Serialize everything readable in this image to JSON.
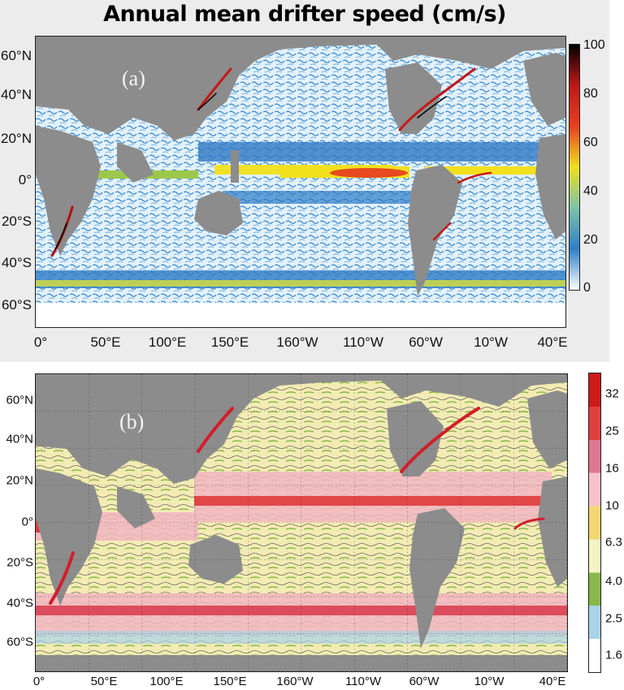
{
  "panel_a": {
    "title": "Annual mean drifter speed (cm/s)",
    "panel_label": "(a)",
    "y_ticks": [
      "60°N",
      "40°N",
      "20°N",
      "0°",
      "20°S",
      "40°S",
      "60°S"
    ],
    "x_ticks": [
      "0°",
      "50°E",
      "100°E",
      "150°E",
      "160°W",
      "110°W",
      "60°W",
      "10°W",
      "40°E"
    ],
    "colorbar_ticks": [
      "100",
      "80",
      "60",
      "40",
      "20",
      "0"
    ]
  },
  "panel_b": {
    "panel_label": "(b)",
    "y_ticks": [
      "60°N",
      "40°N",
      "20°N",
      "0°",
      "20°S",
      "40°S",
      "60°S"
    ],
    "x_ticks": [
      "0°",
      "50°E",
      "100°E",
      "150°E",
      "160°W",
      "110°W",
      "60°W",
      "10°W",
      "40°E"
    ],
    "colorbar_ticks": [
      "32",
      "25",
      "16",
      "10",
      "6.3",
      "4.0",
      "2.5",
      "1.6"
    ]
  },
  "colors": {
    "land": "#8c8c8c",
    "panel_background": "#ececec",
    "a_scale": [
      "#ffffff",
      "#2f7fc8",
      "#7cc4a8",
      "#f0e020",
      "#e84020",
      "#c01818",
      "#000000"
    ],
    "b_scale": [
      "#ffffff",
      "#a9d3e8",
      "#88b84a",
      "#f3f3c4",
      "#f2d873",
      "#f6c2c8",
      "#e07790",
      "#e03f3f",
      "#cc1a1a"
    ]
  }
}
